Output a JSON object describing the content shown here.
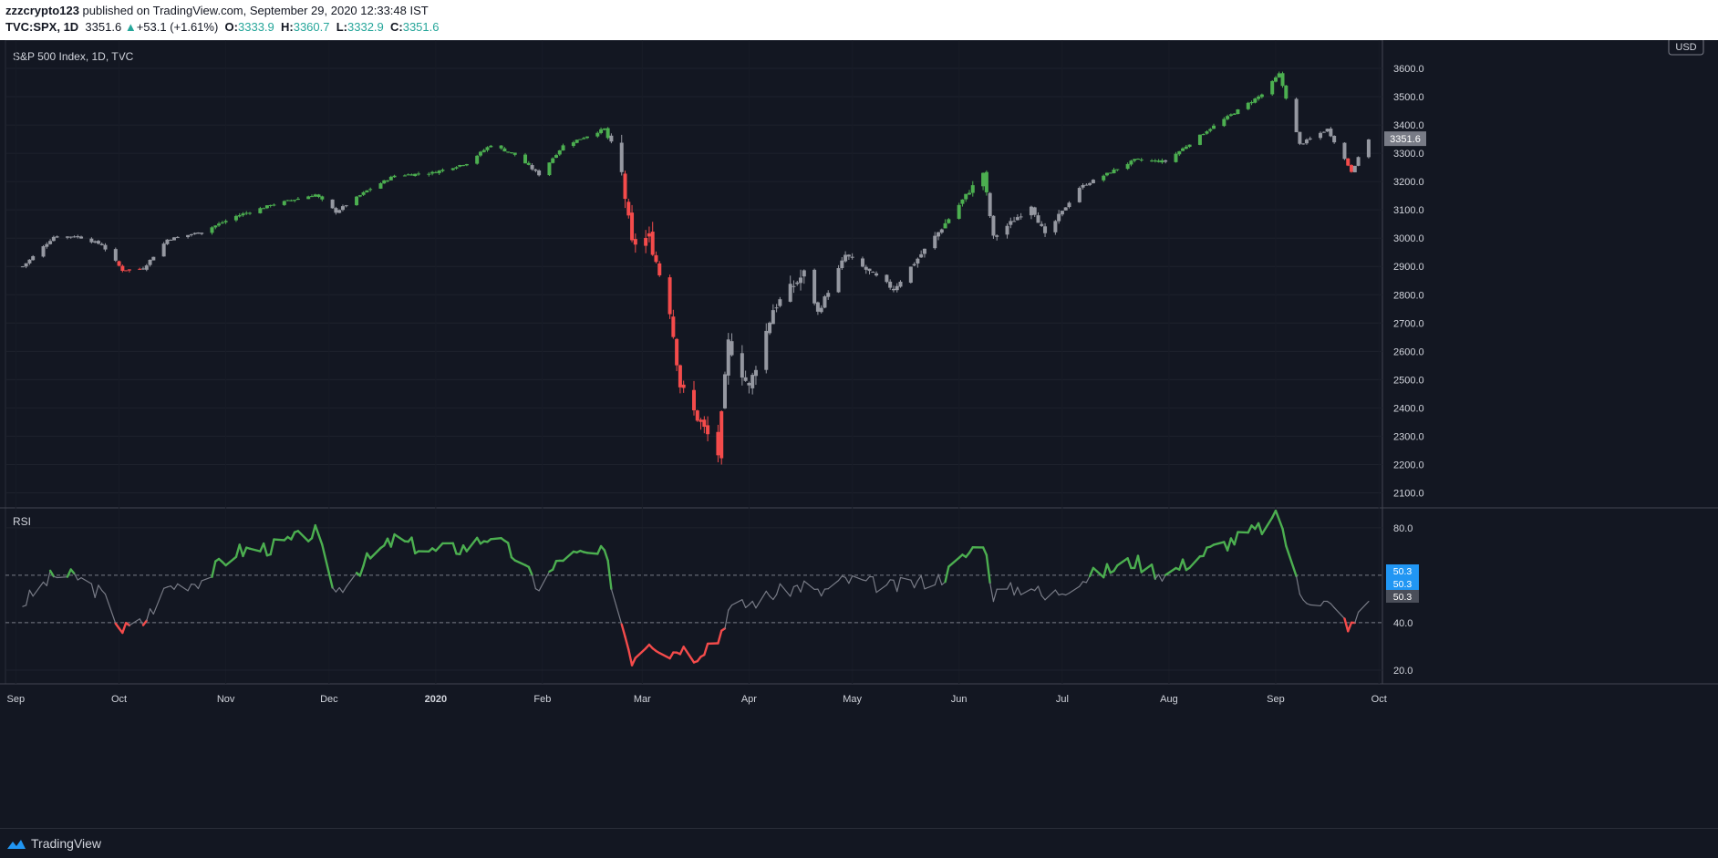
{
  "header": {
    "author": "zzzcrypto123",
    "published": " published on TradingView.com, September 29, 2020 12:33:48 IST",
    "symbol": "TVC:SPX, 1D",
    "last": "3351.6",
    "change": "+53.1 (+1.61%)",
    "o_label": "O:",
    "o": "3333.9",
    "h_label": "H:",
    "h": "3360.7",
    "l_label": "L:",
    "l": "3332.9",
    "c_label": "C:",
    "c": "3351.6"
  },
  "footer": {
    "brand": "TradingView"
  },
  "chart_data": {
    "type": "candlestick",
    "title": "S&P 500 Index, 1D, TVC",
    "currency": "USD",
    "price_axis": {
      "ticks": [
        "3600.0",
        "3500.0",
        "3400.0",
        "3300.0",
        "3200.0",
        "3100.0",
        "3000.0",
        "2900.0",
        "2800.0",
        "2700.0",
        "2600.0",
        "2500.0",
        "2400.0",
        "2300.0",
        "2200.0",
        "2100.0"
      ],
      "min": 2050,
      "max": 3700,
      "last_label": "3351.6"
    },
    "x_axis": {
      "labels": [
        "Sep",
        "Oct",
        "Nov",
        "Dec",
        "2020",
        "Feb",
        "Mar",
        "Apr",
        "May",
        "Jun",
        "Jul",
        "Aug",
        "Sep",
        "Oct"
      ]
    },
    "colors": {
      "up": "#4caf50",
      "down": "#f44b4b",
      "neutral": "#9598a1",
      "rsi_up": "#4caf50",
      "rsi_down": "#f44b4b",
      "rsi_mid": "#787b86",
      "badge": "#2196f3"
    },
    "price_path": [
      [
        "2019-09-03",
        2900
      ],
      [
        "2019-09-12",
        3005
      ],
      [
        "2019-09-19",
        3006
      ],
      [
        "2019-09-26",
        2977
      ],
      [
        "2019-10-02",
        2887
      ],
      [
        "2019-10-08",
        2893
      ],
      [
        "2019-10-15",
        2995
      ],
      [
        "2019-10-25",
        3022
      ],
      [
        "2019-11-04",
        3078
      ],
      [
        "2019-11-15",
        3120
      ],
      [
        "2019-11-27",
        3154
      ],
      [
        "2019-12-03",
        3093
      ],
      [
        "2019-12-12",
        3168
      ],
      [
        "2019-12-20",
        3221
      ],
      [
        "2019-12-31",
        3231
      ],
      [
        "2020-01-10",
        3265
      ],
      [
        "2020-01-17",
        3330
      ],
      [
        "2020-01-24",
        3295
      ],
      [
        "2020-01-31",
        3225
      ],
      [
        "2020-02-07",
        3327
      ],
      [
        "2020-02-19",
        3386
      ],
      [
        "2020-02-24",
        3226
      ],
      [
        "2020-02-27",
        2979
      ],
      [
        "2020-03-03",
        3003
      ],
      [
        "2020-03-09",
        2746
      ],
      [
        "2020-03-12",
        2480
      ],
      [
        "2020-03-16",
        2386
      ],
      [
        "2020-03-20",
        2304
      ],
      [
        "2020-03-23",
        2237
      ],
      [
        "2020-03-26",
        2630
      ],
      [
        "2020-04-01",
        2470
      ],
      [
        "2020-04-08",
        2750
      ],
      [
        "2020-04-17",
        2874
      ],
      [
        "2020-04-21",
        2737
      ],
      [
        "2020-04-29",
        2940
      ],
      [
        "2020-05-13",
        2820
      ],
      [
        "2020-05-27",
        3036
      ],
      [
        "2020-06-08",
        3232
      ],
      [
        "2020-06-11",
        3002
      ],
      [
        "2020-06-22",
        3117
      ],
      [
        "2020-06-26",
        3009
      ],
      [
        "2020-07-06",
        3179
      ],
      [
        "2020-07-22",
        3276
      ],
      [
        "2020-07-31",
        3271
      ],
      [
        "2020-08-12",
        3380
      ],
      [
        "2020-08-28",
        3508
      ],
      [
        "2020-09-02",
        3580
      ],
      [
        "2020-09-08",
        3331
      ],
      [
        "2020-09-16",
        3385
      ],
      [
        "2020-09-23",
        3237
      ],
      [
        "2020-09-28",
        3351
      ]
    ],
    "rsi": {
      "name": "RSI",
      "levels": [
        "80.0",
        "40.0",
        "20.0"
      ],
      "hlines": [
        60,
        40
      ],
      "min": 15,
      "max": 88,
      "badges": [
        "50.3",
        "50.3",
        "50.3"
      ],
      "path": [
        [
          "2019-09-03",
          48
        ],
        [
          "2019-09-12",
          60
        ],
        [
          "2019-09-19",
          59
        ],
        [
          "2019-09-26",
          52
        ],
        [
          "2019-10-02",
          37
        ],
        [
          "2019-10-08",
          40
        ],
        [
          "2019-10-15",
          55
        ],
        [
          "2019-10-25",
          58
        ],
        [
          "2019-11-04",
          70
        ],
        [
          "2019-11-15",
          72
        ],
        [
          "2019-11-27",
          78
        ],
        [
          "2019-12-03",
          53
        ],
        [
          "2019-12-12",
          66
        ],
        [
          "2019-12-20",
          75
        ],
        [
          "2019-12-31",
          70
        ],
        [
          "2020-01-10",
          72
        ],
        [
          "2020-01-17",
          77
        ],
        [
          "2020-01-24",
          68
        ],
        [
          "2020-01-31",
          55
        ],
        [
          "2020-02-07",
          68
        ],
        [
          "2020-02-19",
          69
        ],
        [
          "2020-02-24",
          40
        ],
        [
          "2020-02-27",
          25
        ],
        [
          "2020-03-03",
          33
        ],
        [
          "2020-03-09",
          27
        ],
        [
          "2020-03-12",
          30
        ],
        [
          "2020-03-16",
          26
        ],
        [
          "2020-03-20",
          31
        ],
        [
          "2020-03-23",
          33
        ],
        [
          "2020-03-26",
          45
        ],
        [
          "2020-04-01",
          48
        ],
        [
          "2020-04-08",
          52
        ],
        [
          "2020-04-17",
          56
        ],
        [
          "2020-04-21",
          52
        ],
        [
          "2020-04-29",
          58
        ],
        [
          "2020-05-13",
          55
        ],
        [
          "2020-05-27",
          59
        ],
        [
          "2020-06-08",
          75
        ],
        [
          "2020-06-11",
          52
        ],
        [
          "2020-06-22",
          56
        ],
        [
          "2020-06-26",
          50
        ],
        [
          "2020-07-06",
          58
        ],
        [
          "2020-07-22",
          66
        ],
        [
          "2020-07-31",
          60
        ],
        [
          "2020-08-12",
          70
        ],
        [
          "2020-08-28",
          80
        ],
        [
          "2020-09-02",
          85
        ],
        [
          "2020-09-08",
          52
        ],
        [
          "2020-09-16",
          48
        ],
        [
          "2020-09-23",
          38
        ],
        [
          "2020-09-28",
          50
        ]
      ]
    }
  }
}
